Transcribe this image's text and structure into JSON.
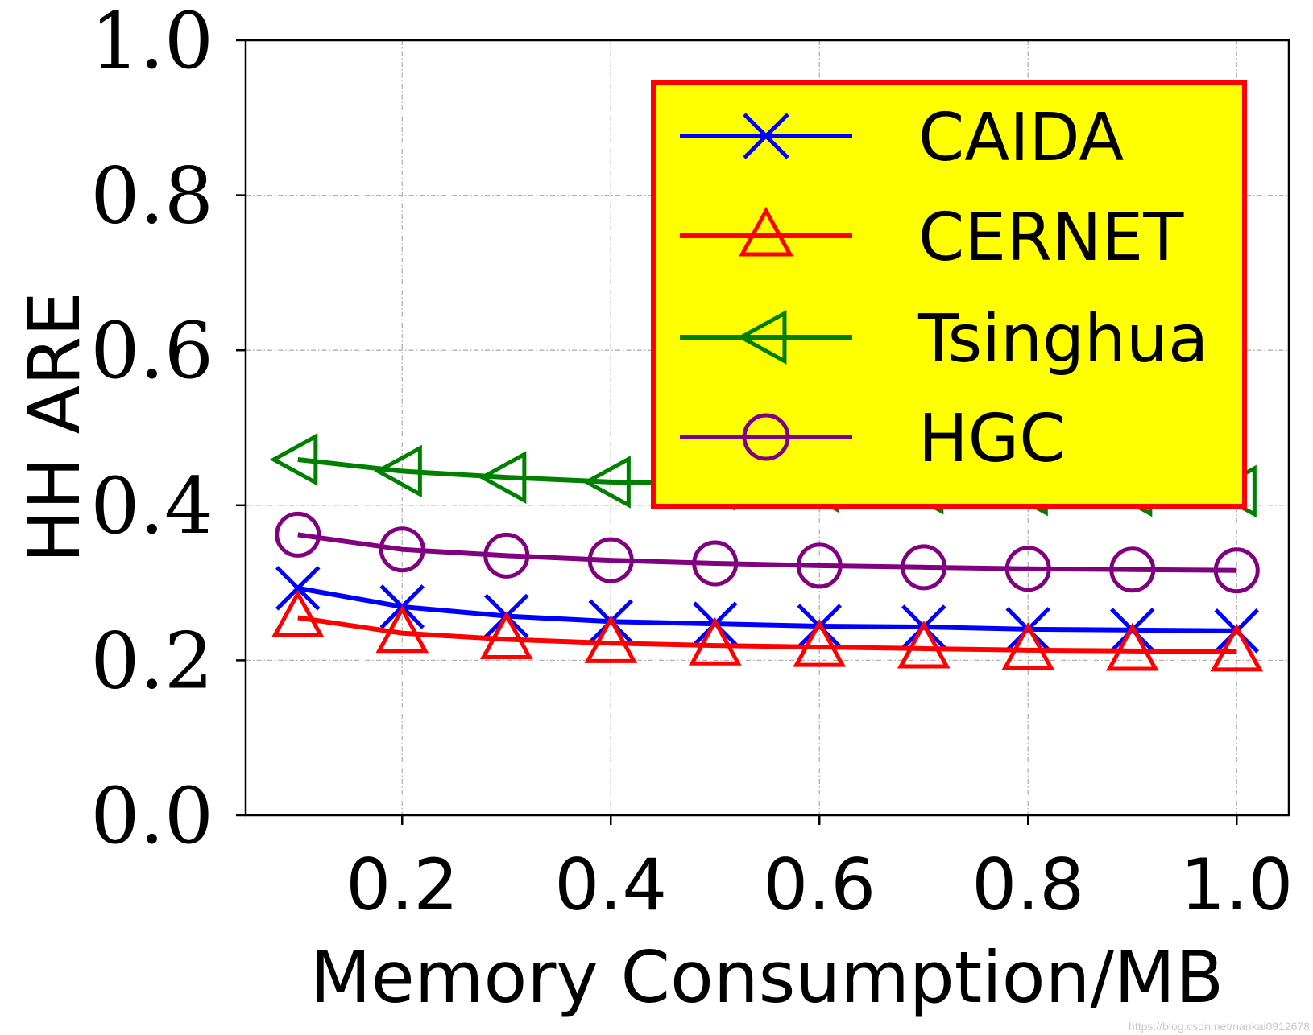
{
  "chart_data": {
    "type": "line",
    "xlabel": "Memory Consumption/MB",
    "ylabel": "HH ARE",
    "xlim": [
      0.05,
      1.05
    ],
    "ylim": [
      0.0,
      1.0
    ],
    "xticks": [
      "0.2",
      "0.4",
      "0.6",
      "0.8",
      "1.0"
    ],
    "yticks": [
      "0.0",
      "0.2",
      "0.4",
      "0.6",
      "0.8",
      "1.0"
    ],
    "grid": true,
    "legend_position": "top-right",
    "legend_background": "#ffff00",
    "legend_border": "#ff0000",
    "x": [
      0.1,
      0.2,
      0.3,
      0.4,
      0.5,
      0.6,
      0.7,
      0.8,
      0.9,
      1.0
    ],
    "series": [
      {
        "name": "CAIDA",
        "color": "#0000ff",
        "marker": "x",
        "values": [
          0.293,
          0.269,
          0.257,
          0.25,
          0.247,
          0.244,
          0.243,
          0.24,
          0.239,
          0.238
        ]
      },
      {
        "name": "CERNET",
        "color": "#ff0000",
        "marker": "triangle-up",
        "values": [
          0.255,
          0.235,
          0.227,
          0.222,
          0.219,
          0.217,
          0.215,
          0.213,
          0.212,
          0.211
        ]
      },
      {
        "name": "Tsinghua",
        "color": "#008000",
        "marker": "triangle-left",
        "values": [
          0.459,
          0.444,
          0.436,
          0.43,
          0.427,
          0.424,
          0.422,
          0.42,
          0.419,
          0.418
        ]
      },
      {
        "name": "HGC",
        "color": "#800080",
        "marker": "circle",
        "values": [
          0.362,
          0.343,
          0.335,
          0.329,
          0.325,
          0.322,
          0.32,
          0.318,
          0.317,
          0.316
        ]
      }
    ]
  },
  "watermark": "https://blog.csdn.net/nankai0912678"
}
